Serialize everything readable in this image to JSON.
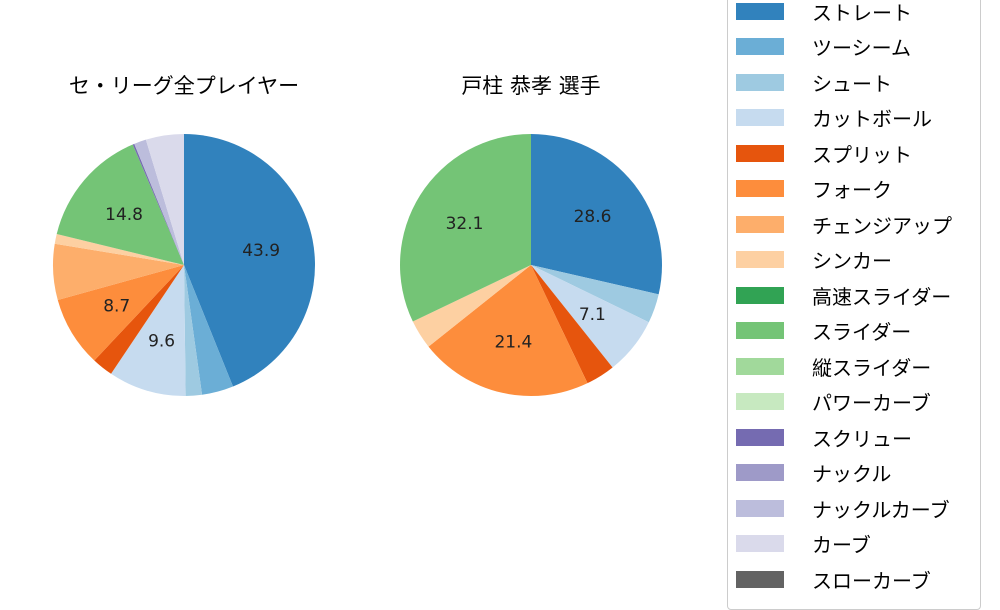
{
  "chart_data": [
    {
      "type": "pie",
      "title": "セ・リーグ全プレイヤー",
      "start_angle": 90,
      "direction": "clockwise",
      "categories": [
        "ストレート",
        "ツーシーム",
        "シュート",
        "カットボール",
        "スプリット",
        "フォーク",
        "チェンジアップ",
        "シンカー",
        "スライダー",
        "スクリュー",
        "ナックルカーブ",
        "カーブ"
      ],
      "values": [
        43.9,
        3.9,
        2.0,
        9.6,
        2.6,
        8.7,
        6.9,
        1.2,
        14.8,
        0.2,
        1.5,
        4.7
      ],
      "labels_shown": [
        "43.9",
        "",
        "",
        "9.6",
        "",
        "8.7",
        "",
        "",
        "14.8",
        "",
        "",
        ""
      ]
    },
    {
      "type": "pie",
      "title": "戸柱 恭孝  選手",
      "start_angle": 90,
      "direction": "clockwise",
      "categories": [
        "ストレート",
        "シュート",
        "カットボール",
        "スプリット",
        "フォーク",
        "シンカー",
        "スライダー"
      ],
      "values": [
        28.6,
        3.6,
        7.1,
        3.6,
        21.4,
        3.6,
        32.1
      ],
      "labels_shown": [
        "28.6",
        "",
        "7.1",
        "",
        "21.4",
        "",
        "32.1"
      ]
    }
  ],
  "colors": {
    "ストレート": "#3182bd",
    "ツーシーム": "#6baed6",
    "シュート": "#9ecae1",
    "カットボール": "#c6dbef",
    "スプリット": "#e6550d",
    "フォーク": "#fd8d3c",
    "チェンジアップ": "#fdae6b",
    "シンカー": "#fdd0a2",
    "高速スライダー": "#31a354",
    "スライダー": "#74c476",
    "縦スライダー": "#a1d99b",
    "パワーカーブ": "#c7e9c0",
    "スクリュー": "#756bb1",
    "ナックル": "#9e9ac8",
    "ナックルカーブ": "#bcbddc",
    "カーブ": "#dadaeb",
    "スローカーブ": "#636363"
  },
  "legend": {
    "items": [
      {
        "label": "ストレート",
        "color": "#3182bd"
      },
      {
        "label": "ツーシーム",
        "color": "#6baed6"
      },
      {
        "label": "シュート",
        "color": "#9ecae1"
      },
      {
        "label": "カットボール",
        "color": "#c6dbef"
      },
      {
        "label": "スプリット",
        "color": "#e6550d"
      },
      {
        "label": "フォーク",
        "color": "#fd8d3c"
      },
      {
        "label": "チェンジアップ",
        "color": "#fdae6b"
      },
      {
        "label": "シンカー",
        "color": "#fdd0a2"
      },
      {
        "label": "高速スライダー",
        "color": "#31a354"
      },
      {
        "label": "スライダー",
        "color": "#74c476"
      },
      {
        "label": "縦スライダー",
        "color": "#a1d99b"
      },
      {
        "label": "パワーカーブ",
        "color": "#c7e9c0"
      },
      {
        "label": "スクリュー",
        "color": "#756bb1"
      },
      {
        "label": "ナックル",
        "color": "#9e9ac8"
      },
      {
        "label": "ナックルカーブ",
        "color": "#bcbddc"
      },
      {
        "label": "カーブ",
        "color": "#dadaeb"
      },
      {
        "label": "スローカーブ",
        "color": "#636363"
      }
    ]
  }
}
